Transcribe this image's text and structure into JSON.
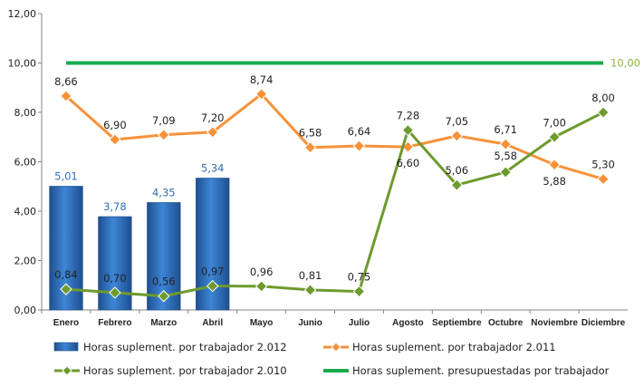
{
  "chart_data": {
    "type": "bar",
    "categories": [
      "Enero",
      "Febrero",
      "Marzo",
      "Abril",
      "Mayo",
      "Junio",
      "Julio",
      "Agosto",
      "Septiembre",
      "Octubre",
      "Noviembre",
      "Diciembre"
    ],
    "ylim": [
      0,
      12
    ],
    "yticks": [
      "0,00",
      "2,00",
      "4,00",
      "6,00",
      "8,00",
      "10,00",
      "12,00"
    ],
    "grid": false,
    "legend_position": "bottom",
    "series": [
      {
        "name": "Horas suplement. por trabajador 2.012",
        "type": "bar",
        "color": "#2e6db5",
        "values": [
          5.01,
          3.78,
          4.35,
          5.34,
          null,
          null,
          null,
          null,
          null,
          null,
          null,
          null
        ],
        "labels": [
          "5,01",
          "3,78",
          "4,35",
          "5,34",
          "",
          "",
          "",
          "",
          "",
          "",
          "",
          ""
        ]
      },
      {
        "name": "Horas suplement. por trabajador 2.011",
        "type": "line",
        "color": "#f7923a",
        "marker": "diamond",
        "values": [
          8.66,
          6.9,
          7.09,
          7.2,
          8.74,
          6.58,
          6.64,
          6.6,
          7.05,
          6.71,
          5.88,
          5.3
        ],
        "labels": [
          "8,66",
          "6,90",
          "7,09",
          "7,20",
          "8,74",
          "6,58",
          "6,64",
          "6,60",
          "7,05",
          "6,71",
          "5,88",
          "5,30"
        ]
      },
      {
        "name": "Horas suplement. por trabajador 2.010",
        "type": "line",
        "color": "#6e9a2e",
        "marker": "diamond",
        "values": [
          0.84,
          0.7,
          0.56,
          0.97,
          0.96,
          0.81,
          0.75,
          7.28,
          5.06,
          5.58,
          7.0,
          8.0
        ],
        "labels": [
          "0,84",
          "0,70",
          "0,56",
          "0,97",
          "0,96",
          "0,81",
          "0,75",
          "7,28",
          "5,06",
          "5,58",
          "7,00",
          "8,00"
        ]
      },
      {
        "name": "Horas suplement. presupuestadas por trabajador",
        "type": "line",
        "color": "#1aaa4e",
        "marker": "none",
        "values": [
          10,
          10,
          10,
          10,
          10,
          10,
          10,
          10,
          10,
          10,
          10,
          10
        ],
        "end_label": "10,00"
      }
    ]
  }
}
